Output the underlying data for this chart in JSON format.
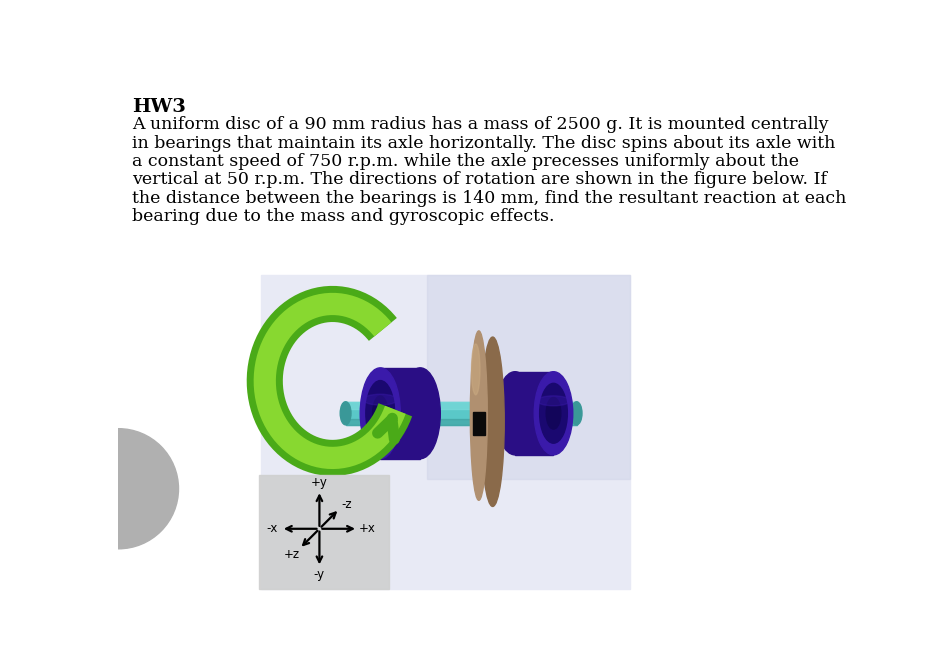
{
  "title": "HW3",
  "body_lines": [
    "A uniform disc of a 90 mm radius has a mass of 2500 g. It is mounted centrally",
    "in bearings that maintain its axle horizontally. The disc spins about its axle with",
    "a constant speed of 750 r.p.m. while the axle precesses uniformly about the",
    "vertical at 50 r.p.m. The directions of rotation are shown in the figure below. If",
    "the distance between the bearings is 140 mm, find the resultant reaction at each",
    "bearing due to the mass and gyroscopic effects."
  ],
  "main_bg": "#ffffff",
  "scene_bg": "#e8eaf5",
  "scene_bg2": "#d0d4e8",
  "axis_box_color": "#d0d0d0",
  "purple_front": "#3a1aaa",
  "purple_side": "#2a0e85",
  "purple_inner": "#1a0870",
  "purple_dark": "#12055a",
  "teal_main": "#5ac8c8",
  "teal_light": "#7adada",
  "teal_dark": "#3a9898",
  "disc_face": "#b09070",
  "disc_edge": "#8a6a4a",
  "disc_highlight": "#c8a880",
  "green_dark": "#4aaa18",
  "green_light": "#88d830",
  "gray_circle": "#b0b0b0",
  "title_fontsize": 14,
  "body_fontsize": 12.5
}
